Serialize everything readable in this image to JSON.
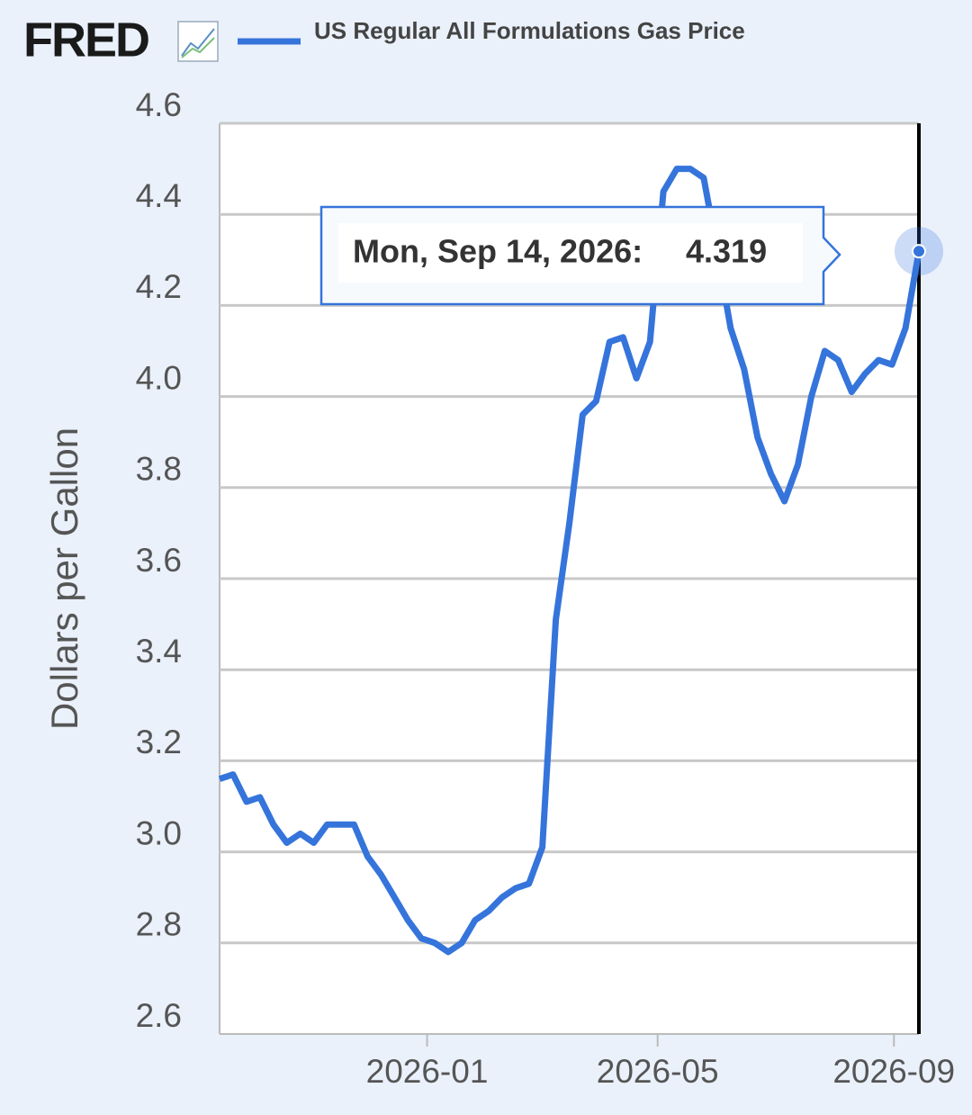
{
  "chart_data": {
    "type": "line",
    "logo": "FRED",
    "ylabel": "Dollars per Gallon",
    "x": [
      "2025-09-15",
      "2025-09-22",
      "2025-09-29",
      "2025-10-06",
      "2025-10-13",
      "2025-10-20",
      "2025-10-27",
      "2025-11-03",
      "2025-11-10",
      "2025-11-17",
      "2025-11-24",
      "2025-12-01",
      "2025-12-08",
      "2025-12-15",
      "2025-12-22",
      "2025-12-29",
      "2026-01-05",
      "2026-01-12",
      "2026-01-19",
      "2026-01-26",
      "2026-02-02",
      "2026-02-09",
      "2026-02-16",
      "2026-02-23",
      "2026-03-02",
      "2026-03-09",
      "2026-03-16",
      "2026-03-23",
      "2026-03-30",
      "2026-04-06",
      "2026-04-13",
      "2026-04-20",
      "2026-04-27",
      "2026-05-04",
      "2026-05-11",
      "2026-05-18",
      "2026-05-25",
      "2026-06-01",
      "2026-06-08",
      "2026-06-15",
      "2026-06-22",
      "2026-06-29",
      "2026-07-06",
      "2026-07-13",
      "2026-07-20",
      "2026-07-27",
      "2026-08-03",
      "2026-08-10",
      "2026-08-17",
      "2026-08-24",
      "2026-08-31",
      "2026-09-07",
      "2026-09-14"
    ],
    "series": [
      {
        "name": "US Regular All Formulations Gas Price",
        "color": "#3574db",
        "values": [
          3.16,
          3.17,
          3.11,
          3.12,
          3.06,
          3.02,
          3.04,
          3.02,
          3.06,
          3.06,
          3.06,
          2.99,
          2.95,
          2.9,
          2.85,
          2.81,
          2.8,
          2.78,
          2.8,
          2.85,
          2.87,
          2.9,
          2.92,
          2.93,
          3.01,
          3.51,
          3.72,
          3.96,
          3.99,
          4.12,
          4.13,
          4.04,
          4.12,
          4.45,
          4.5,
          4.5,
          4.48,
          4.32,
          4.15,
          4.06,
          3.91,
          3.83,
          3.77,
          3.85,
          4.0,
          4.1,
          4.08,
          4.01,
          4.05,
          4.08,
          4.07,
          4.15,
          4.319
        ]
      }
    ],
    "tooltip_label": "Mon, Sep 14, 2026:",
    "xlim": [
      "2025-09-15",
      "2026-09-14"
    ],
    "xticks": [
      {
        "value": "2026-01-01",
        "label": "2026-01"
      },
      {
        "value": "2026-05-01",
        "label": "2026-05"
      },
      {
        "value": "2026-09-01",
        "label": "2026-09"
      }
    ],
    "ylim": [
      2.6,
      4.6
    ],
    "yticks": [
      2.6,
      2.8,
      {
        "value": 3,
        "label": "3.0"
      },
      3.2,
      3.4,
      3.6,
      3.8,
      {
        "value": 4,
        "label": "4.0"
      },
      4.2,
      4.4,
      4.6
    ],
    "grid": true
  }
}
